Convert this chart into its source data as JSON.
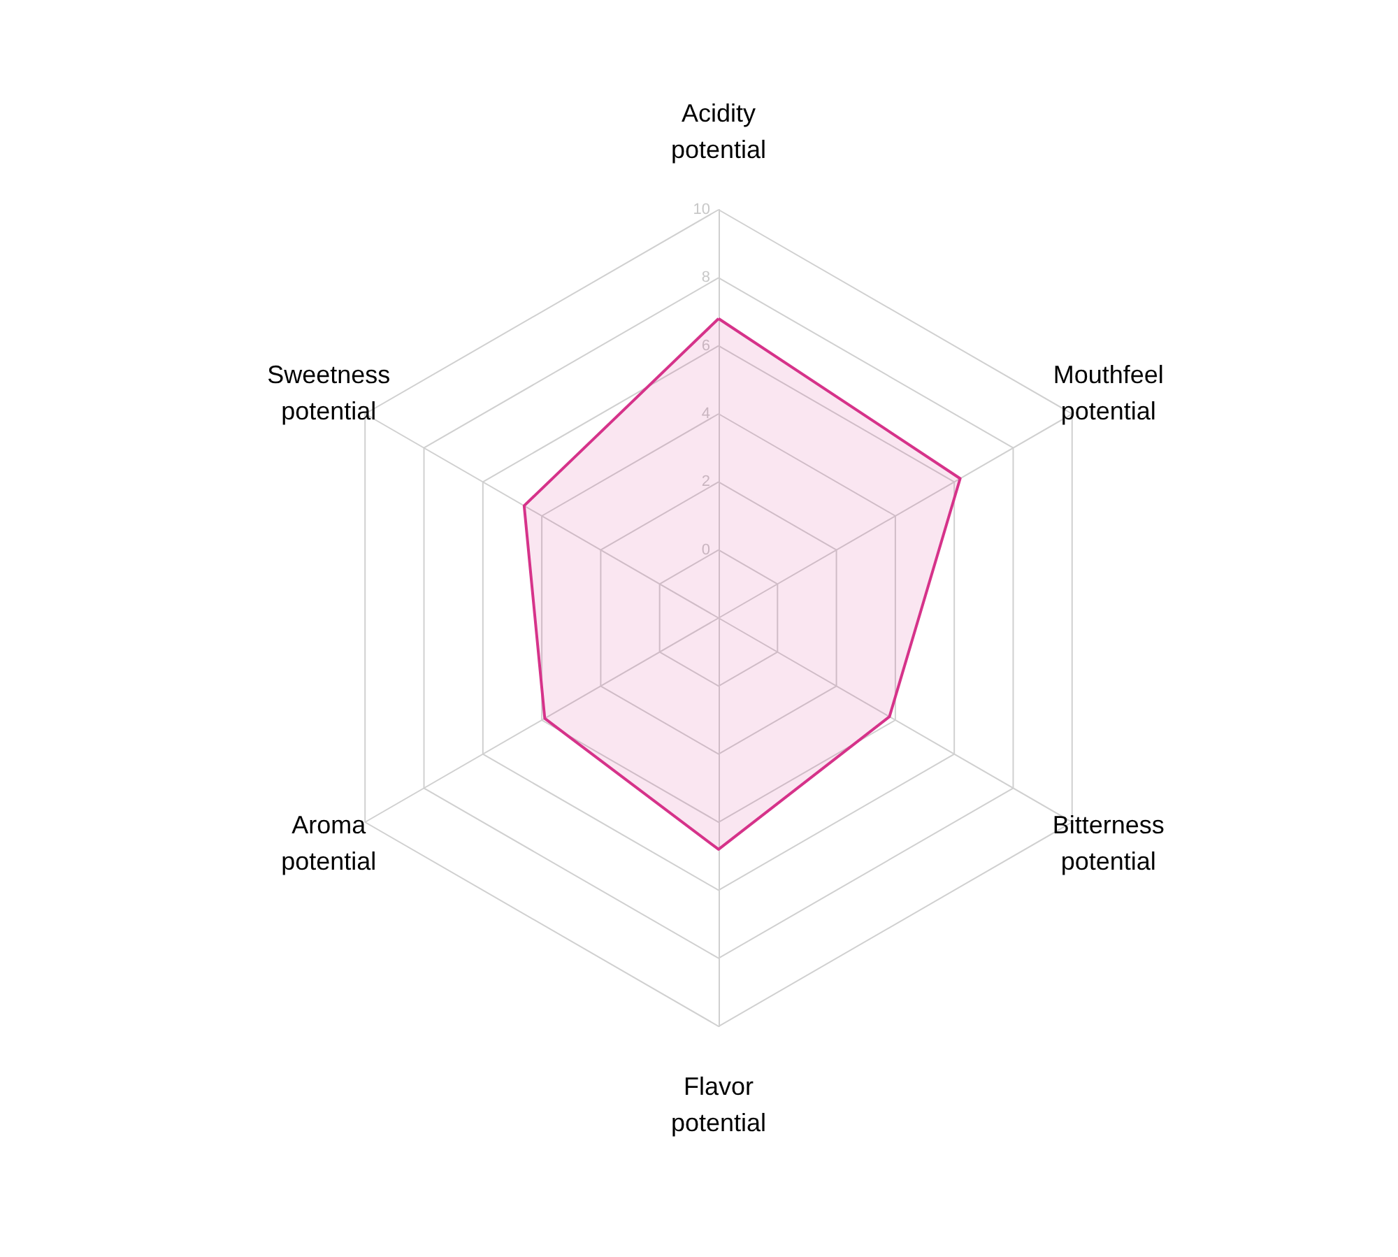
{
  "chart_data": {
    "type": "radar",
    "categories": [
      "Acidity\npotential",
      "Mouthfeel\npotential",
      "Bitterness\npotential",
      "Flavor\npotential",
      "Aroma\npotential",
      "Sweetness\npotential"
    ],
    "series": [
      {
        "color": "#d6338a",
        "values": [
          6.8,
          6.2,
          3.8,
          4.8,
          3.9,
          4.6
        ]
      }
    ],
    "ylim": [
      -2,
      10
    ],
    "yticks": [
      0,
      2,
      4,
      6,
      8,
      10
    ],
    "grid": true,
    "marker": "none"
  }
}
